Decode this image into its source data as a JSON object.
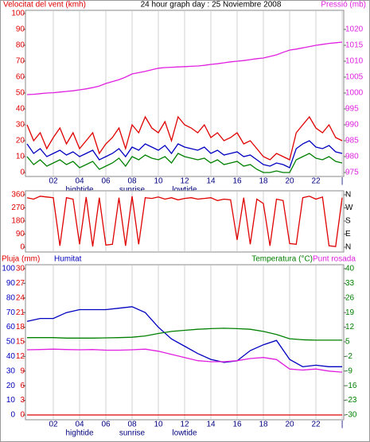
{
  "chart_data": [
    {
      "type": "line",
      "title": "24 hour graph day : 25 Noviembre 2008",
      "ylabel": "Velocitat del vent (kmh)",
      "y2label": "Pressió (mb)",
      "xlim": [
        0,
        24
      ],
      "xticks": [
        {
          "value": 2,
          "label": "02"
        },
        {
          "value": 4,
          "label": "04"
        },
        {
          "value": 6,
          "label": "06"
        },
        {
          "value": 8,
          "label": "08"
        },
        10,
        12,
        14,
        16,
        18,
        20,
        22,
        {
          "value": 24,
          "label": "|"
        }
      ],
      "annotations": [
        {
          "text": "hightide",
          "x": 4
        },
        {
          "text": "sunrise",
          "x": 8
        },
        {
          "text": "lowtide",
          "x": 12
        }
      ],
      "ylim": [
        0,
        100
      ],
      "yticks": [
        0,
        10,
        20,
        30,
        40,
        50,
        60,
        70,
        80,
        90,
        100
      ],
      "y2lim": [
        975,
        1025
      ],
      "y2ticks": [
        975,
        980,
        985,
        990,
        995,
        1000,
        1005,
        1010,
        1015,
        1020
      ],
      "grid": "x",
      "x": [
        0,
        0.5,
        1,
        1.5,
        2,
        2.5,
        3,
        3.5,
        4,
        4.5,
        5,
        5.5,
        6,
        6.5,
        7,
        7.5,
        8,
        8.5,
        9,
        9.5,
        10,
        10.5,
        11,
        11.5,
        12,
        12.5,
        13,
        13.5,
        14,
        14.5,
        15,
        15.5,
        16,
        16.5,
        17,
        17.5,
        18,
        18.5,
        19,
        19.5,
        20,
        20.5,
        21,
        21.5,
        22,
        22.5,
        23,
        23.5,
        24
      ],
      "series": [
        {
          "color": "#e00000",
          "axis": "y",
          "values": [
            30,
            20,
            25,
            15,
            22,
            28,
            18,
            25,
            15,
            20,
            25,
            12,
            18,
            22,
            28,
            15,
            30,
            25,
            35,
            28,
            25,
            32,
            20,
            35,
            30,
            28,
            25,
            30,
            22,
            25,
            20,
            22,
            25,
            18,
            20,
            15,
            10,
            8,
            12,
            10,
            8,
            25,
            30,
            35,
            28,
            25,
            30,
            22,
            20
          ]
        },
        {
          "color": "#008000",
          "axis": "y",
          "values": [
            10,
            5,
            8,
            4,
            6,
            8,
            5,
            7,
            3,
            5,
            7,
            2,
            4,
            6,
            9,
            4,
            10,
            8,
            11,
            9,
            8,
            10,
            6,
            12,
            10,
            9,
            8,
            9,
            6,
            8,
            5,
            6,
            7,
            4,
            5,
            2,
            0,
            0,
            1,
            0,
            0,
            8,
            10,
            12,
            9,
            8,
            10,
            7,
            6
          ]
        },
        {
          "color": "#0000c0",
          "axis": "y",
          "values": [
            18,
            12,
            15,
            10,
            12,
            14,
            11,
            13,
            10,
            12,
            14,
            8,
            10,
            12,
            15,
            10,
            16,
            14,
            18,
            16,
            14,
            17,
            12,
            18,
            16,
            15,
            14,
            16,
            12,
            14,
            11,
            12,
            13,
            10,
            11,
            8,
            5,
            4,
            6,
            5,
            3,
            15,
            18,
            20,
            16,
            15,
            17,
            13,
            12
          ]
        },
        {
          "color": "#e020e0",
          "axis": "y2",
          "values": [
            999.5,
            999.6,
            999.8,
            1000,
            1000.1,
            1000.3,
            1000.5,
            1000.7,
            1001,
            1001.3,
            1001.7,
            1002.2,
            1003,
            1003.6,
            1004.2,
            1005,
            1006,
            1006.4,
            1006.8,
            1007.3,
            1007.8,
            1008,
            1008.1,
            1008.2,
            1008.3,
            1008.4,
            1008.5,
            1008.7,
            1009,
            1009.2,
            1009.5,
            1009.8,
            1010,
            1010.2,
            1010.5,
            1010.8,
            1011,
            1011.5,
            1012,
            1012.8,
            1013.5,
            1013.8,
            1014.2,
            1014.6,
            1015,
            1015.3,
            1015.6,
            1015.8,
            1016
          ]
        }
      ]
    },
    {
      "type": "line",
      "xlim": [
        0,
        24
      ],
      "ylim": [
        0,
        360
      ],
      "yticks": [
        0,
        90,
        180,
        270,
        360
      ],
      "y2lim": [
        0,
        360
      ],
      "y2ticks": [
        {
          "value": 0,
          "label": "N"
        },
        {
          "value": 90,
          "label": "E"
        },
        {
          "value": 180,
          "label": "S"
        },
        {
          "value": 270,
          "label": "W"
        },
        {
          "value": 360,
          "label": "N"
        }
      ],
      "grid": "x",
      "xticks": [
        2,
        4,
        6,
        8,
        10,
        12,
        14,
        16,
        18,
        20,
        22,
        24
      ],
      "x": [
        0,
        0.5,
        1,
        1.5,
        2,
        2.5,
        3,
        3.5,
        4,
        4.5,
        5,
        5.5,
        6,
        6.5,
        7,
        7.5,
        8,
        8.5,
        9,
        9.5,
        10,
        10.5,
        11,
        11.5,
        12,
        12.5,
        13,
        13.5,
        14,
        14.5,
        15,
        15.5,
        16,
        16.5,
        17,
        17.5,
        18,
        18.5,
        19,
        19.5,
        20,
        20.5,
        21,
        21.5,
        22,
        22.5,
        23,
        23.5,
        24
      ],
      "series": [
        {
          "color": "#e00000",
          "axis": "y",
          "values": [
            340,
            330,
            350,
            345,
            340,
            10,
            340,
            330,
            20,
            345,
            5,
            340,
            15,
            20,
            340,
            10,
            350,
            20,
            340,
            335,
            345,
            330,
            340,
            325,
            335,
            340,
            330,
            335,
            340,
            320,
            330,
            325,
            50,
            340,
            20,
            330,
            300,
            10,
            330,
            320,
            25,
            20,
            340,
            350,
            330,
            345,
            10,
            5,
            340
          ]
        }
      ]
    },
    {
      "type": "line",
      "xlim": [
        0,
        24
      ],
      "xticks": [
        {
          "value": 2,
          "label": "02"
        },
        {
          "value": 4,
          "label": "04"
        },
        {
          "value": 6,
          "label": "06"
        },
        {
          "value": 8,
          "label": "08"
        },
        10,
        12,
        14,
        16,
        18,
        20,
        22,
        {
          "value": 24,
          "label": "|"
        }
      ],
      "annotations": [
        {
          "text": "hightide",
          "x": 4
        },
        {
          "text": "sunrise",
          "x": 8
        },
        {
          "text": "lowtide",
          "x": 12
        }
      ],
      "ylim": [
        0,
        100
      ],
      "yticks": [
        0,
        10,
        20,
        30,
        40,
        50,
        60,
        70,
        80,
        90,
        100
      ],
      "y3lim": [
        0,
        30
      ],
      "y3ticks": [
        0,
        3,
        6,
        9,
        12,
        15,
        18,
        21,
        24,
        27,
        30
      ],
      "y2lim": [
        -30,
        40
      ],
      "y2ticks": [
        -30,
        -23,
        -16,
        -9,
        -2,
        5,
        12,
        19,
        26,
        33,
        40
      ],
      "grid": "x",
      "x": [
        0,
        1,
        2,
        3,
        4,
        5,
        6,
        7,
        8,
        9,
        10,
        11,
        12,
        13,
        14,
        15,
        16,
        17,
        18,
        19,
        20,
        21,
        22,
        23,
        24
      ],
      "series": [
        {
          "name": "Pluja (mm)",
          "color": "#e00000",
          "axis": "y3",
          "values": [
            0,
            0,
            0,
            0,
            0,
            0,
            0,
            0,
            0,
            0,
            0,
            0,
            0,
            0,
            0,
            0,
            0,
            0,
            0,
            0,
            0,
            0,
            0,
            0,
            0
          ]
        },
        {
          "name": "Humitat",
          "color": "#0000c0",
          "axis": "y",
          "values": [
            64,
            66,
            66,
            70,
            72,
            72,
            72,
            73,
            74,
            70,
            60,
            52,
            47,
            42,
            38,
            36,
            37,
            44,
            48,
            51,
            38,
            33,
            34,
            33,
            33
          ]
        },
        {
          "name": "Temperatura (°C)",
          "color": "#008000",
          "axis": "y2",
          "values": [
            7,
            7,
            7,
            6.8,
            6.8,
            6.8,
            6.9,
            7,
            7.2,
            7.8,
            9,
            10,
            10.5,
            11,
            11.3,
            11.5,
            11.3,
            11,
            10,
            8.5,
            6.5,
            6,
            5.8,
            5.8,
            5.8
          ]
        },
        {
          "name": "Punt rosada",
          "color": "#e020e0",
          "axis": "y2",
          "values": [
            1.2,
            1.3,
            1.5,
            1.3,
            1.2,
            1.3,
            1,
            1,
            1.2,
            1.5,
            0.5,
            -1,
            -2.5,
            -4,
            -4.5,
            -4.5,
            -4,
            -3,
            -2.5,
            -3.5,
            -8,
            -8.5,
            -8,
            -9,
            -9.5
          ]
        }
      ]
    }
  ]
}
